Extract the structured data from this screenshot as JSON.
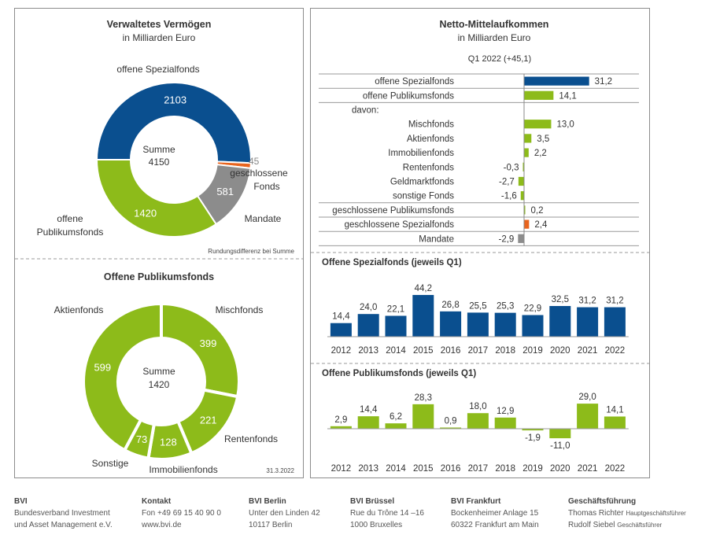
{
  "colors": {
    "blue": "#0a4f8f",
    "green": "#8dbb1a",
    "orange": "#e8641e",
    "gray": "#8c8c8c"
  },
  "assets": {
    "title": "Verwaltetes Vermögen",
    "subtitle": "in Milliarden Euro",
    "center_label": "Summe",
    "center_value": "4150",
    "note": "Rundungsdifferenz bei Summe"
  },
  "public_funds": {
    "title": "Offene Publikumsfonds",
    "center_label": "Summe",
    "center_value": "1420",
    "date": "31.3.2022"
  },
  "flows": {
    "title": "Netto-Mittelaufkommen",
    "subtitle": "in Milliarden Euro",
    "period": "Q1 2022 (+45,1)"
  },
  "footer": {
    "bvi": {
      "head": "BVI",
      "line1": "Bundesverband Investment",
      "line2": "und Asset Management e.V."
    },
    "contact": {
      "head": "Kontakt",
      "line1": "Fon +49 69 15 40 90 0",
      "line2": "www.bvi.de"
    },
    "berlin": {
      "head": "BVI Berlin",
      "line1": "Unter den Linden 42",
      "line2": "10117 Berlin"
    },
    "brussels": {
      "head": "BVI Brüssel",
      "line1": "Rue du Trône 14 –16",
      "line2": "1000 Bruxelles"
    },
    "frankfurt": {
      "head": "BVI Frankfurt",
      "line1": "Bockenheimer Anlage 15",
      "line2": "60322 Frankfurt am Main"
    },
    "management": {
      "head": "Geschäftsführung",
      "name1": "Thomas Richter",
      "role1": "Hauptgeschäftsführer",
      "name2": "Rudolf Siebel",
      "role2": "Geschäftsführer"
    }
  },
  "chart_data": [
    {
      "type": "pie",
      "title": "Verwaltetes Vermögen",
      "subtitle": "in Milliarden Euro",
      "labels": [
        "offene Spezialfonds",
        "geschlossene Fonds",
        "Mandate",
        "offene Publikumsfonds"
      ],
      "values": [
        2103,
        45,
        581,
        1420
      ],
      "colors": [
        "#0a4f8f",
        "#e8641e",
        "#8c8c8c",
        "#8dbb1a"
      ],
      "value_labels": [
        "2103",
        "45",
        "581",
        "1420"
      ],
      "center_label": "Summe",
      "center_value": "4150"
    },
    {
      "type": "pie",
      "title": "Offene Publikumsfonds",
      "labels": [
        "Mischfonds",
        "Rentenfonds",
        "Immobilienfonds",
        "Sonstige",
        "Aktienfonds"
      ],
      "values": [
        399,
        221,
        128,
        73,
        599
      ],
      "colors": [
        "#8dbb1a",
        "#8dbb1a",
        "#8dbb1a",
        "#8dbb1a",
        "#8dbb1a"
      ],
      "value_labels": [
        "399",
        "221",
        "128",
        "73",
        "599"
      ],
      "center_label": "Summe",
      "center_value": "1420"
    },
    {
      "type": "bar",
      "orientation": "horizontal",
      "title": "Netto-Mittelaufkommen",
      "subtitle": "Q1 2022 (+45,1)",
      "categories": [
        "offene Spezialfonds",
        "offene Publikumsfonds",
        "davon:",
        "Mischfonds",
        "Aktienfonds",
        "Immobilienfonds",
        "Rentenfonds",
        "Geldmarktfonds",
        "sonstige Fonds",
        "geschlossene Publikumsfonds",
        "geschlossene Spezialfonds",
        "Mandate"
      ],
      "values": [
        31.2,
        14.1,
        null,
        13.0,
        3.5,
        2.2,
        -0.3,
        -2.7,
        -1.6,
        0.2,
        2.4,
        -2.9
      ],
      "value_labels": [
        "31,2",
        "14,1",
        "",
        "13,0",
        "3,5",
        "2,2",
        "-0,3",
        "-2,7",
        "-1,6",
        "0,2",
        "2,4",
        "-2,9"
      ],
      "colors": [
        "#0a4f8f",
        "#8dbb1a",
        "",
        "#8dbb1a",
        "#8dbb1a",
        "#8dbb1a",
        "#8dbb1a",
        "#8dbb1a",
        "#8dbb1a",
        "#8dbb1a",
        "#e8641e",
        "#8c8c8c"
      ]
    },
    {
      "type": "bar",
      "title": "Offene Spezialfonds (jeweils Q1)",
      "categories": [
        "2012",
        "2013",
        "2014",
        "2015",
        "2016",
        "2017",
        "2018",
        "2019",
        "2020",
        "2021",
        "2022"
      ],
      "values": [
        14.4,
        24.0,
        22.1,
        44.2,
        26.8,
        25.5,
        25.3,
        22.9,
        32.5,
        31.2,
        31.2
      ],
      "value_labels": [
        "14,4",
        "24,0",
        "22,1",
        "44,2",
        "26,8",
        "25,5",
        "25,3",
        "22,9",
        "32,5",
        "31,2",
        "31,2"
      ],
      "color": "#0a4f8f"
    },
    {
      "type": "bar",
      "title": "Offene Publikumsfonds (jeweils Q1)",
      "categories": [
        "2012",
        "2013",
        "2014",
        "2015",
        "2016",
        "2017",
        "2018",
        "2019",
        "2020",
        "2021",
        "2022"
      ],
      "values": [
        2.9,
        14.4,
        6.2,
        28.3,
        0.9,
        18.0,
        12.9,
        -1.9,
        -11.0,
        29.0,
        14.1
      ],
      "value_labels": [
        "2,9",
        "14,4",
        "6,2",
        "28,3",
        "0,9",
        "18,0",
        "12,9",
        "-1,9",
        "-11,0",
        "29,0",
        "14,1"
      ],
      "color": "#8dbb1a"
    }
  ]
}
